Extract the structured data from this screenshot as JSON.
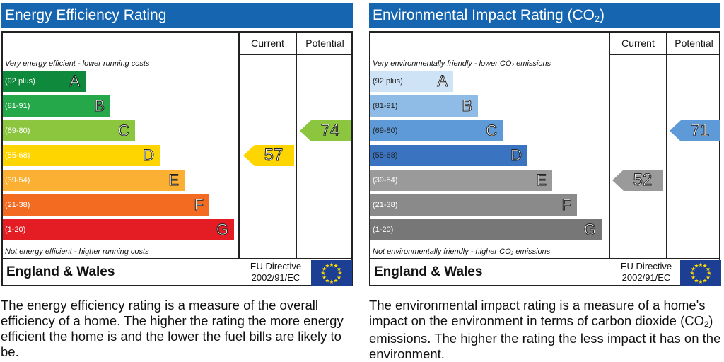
{
  "energy_efficiency": {
    "title": "Energy Efficiency Rating",
    "col_current": "Current",
    "col_potential": "Potential",
    "top_note": "Very energy efficient - lower running costs",
    "bottom_note": "Not energy efficient - higher running costs",
    "region": "England & Wales",
    "directive_line1": "EU Directive",
    "directive_line2": "2002/91/EC",
    "flag_icon": "eu-flag-icon",
    "description": "The energy efficiency rating is a measure of the overall efficiency of a home. The higher the rating the more energy efficient the home is and the lower the fuel bills are likely to be."
  },
  "environmental_impact": {
    "title_main": "Environmental Impact Rating (CO",
    "title_sub": "2",
    "title_end": ")",
    "col_current": "Current",
    "col_potential": "Potential",
    "top_note_main": "Very environmentally friendly - lower CO",
    "top_note_sub": "2",
    "top_note_end": " emissions",
    "bottom_note_main": "Not environmentally friendly - higher CO",
    "bottom_note_sub": "2",
    "bottom_note_end": " emissions",
    "region": "England & Wales",
    "directive_line1": "EU Directive",
    "directive_line2": "2002/91/EC",
    "flag_icon": "eu-flag-icon",
    "desc_part1": "The environmental impact rating is a measure of a home's impact on the environment in terms of carbon dioxide (CO",
    "desc_sub": "2",
    "desc_part2": ") emissions. The higher the rating the less impact it has on the environment."
  },
  "chart_data": [
    {
      "type": "bar",
      "title": "Energy Efficiency Rating",
      "categories": [
        "A",
        "B",
        "C",
        "D",
        "E",
        "F",
        "G"
      ],
      "ranges": [
        "(92 plus)",
        "(81-91)",
        "(69-80)",
        "(55-68)",
        "(39-54)",
        "(21-38)",
        "(1-20)"
      ],
      "colors": [
        "#0f8a3c",
        "#25a84a",
        "#8cc63f",
        "#ffd500",
        "#fbb034",
        "#f26b21",
        "#e31d23"
      ],
      "current": 57,
      "current_band": "D",
      "potential": 74,
      "potential_band": "C"
    },
    {
      "type": "bar",
      "title": "Environmental Impact Rating (CO2)",
      "categories": [
        "A",
        "B",
        "C",
        "D",
        "E",
        "F",
        "G"
      ],
      "ranges": [
        "(92 plus)",
        "(81-91)",
        "(69-80)",
        "(55-68)",
        "(39-54)",
        "(21-38)",
        "(1-20)"
      ],
      "colors": [
        "#cfe3f6",
        "#8fbce6",
        "#5f9ad8",
        "#3a74c0",
        "#9a9a9a",
        "#8a8a8a",
        "#777777"
      ],
      "range_text_colors": [
        "#222222",
        "#222222",
        "#222222",
        "#222222",
        "#ffffff",
        "#ffffff",
        "#ffffff"
      ],
      "current": 52,
      "current_band": "E",
      "potential": 71,
      "potential_band": "C"
    }
  ]
}
